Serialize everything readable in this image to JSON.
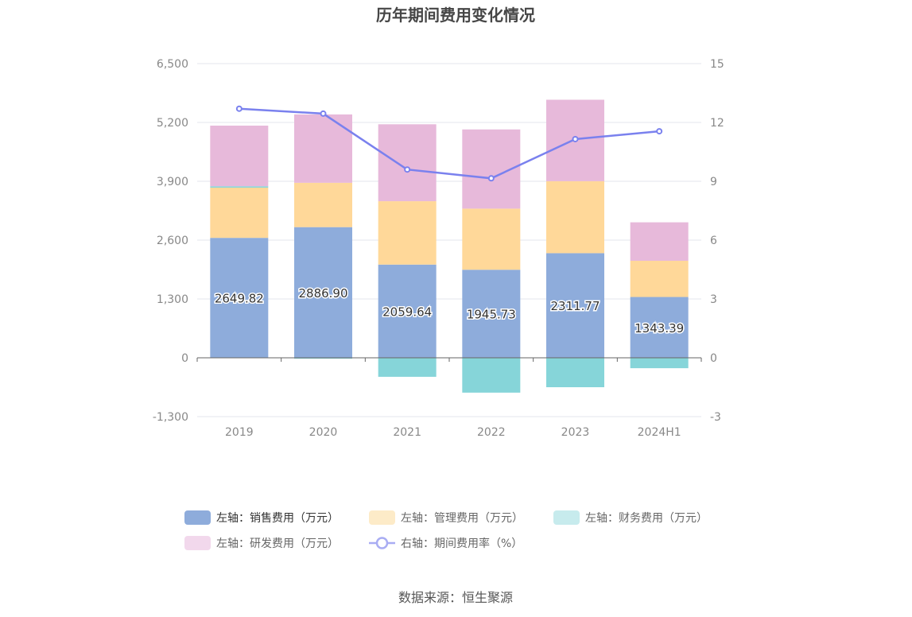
{
  "chart_data": {
    "type": "bar",
    "stacked": true,
    "title": "历年期间费用变化情况",
    "categories": [
      "2019",
      "2020",
      "2021",
      "2022",
      "2023",
      "2024H1"
    ],
    "left_axis": {
      "min": -1300,
      "max": 6500,
      "ticks": [
        "-1,300",
        "0",
        "1,300",
        "2,600",
        "3,900",
        "5,200",
        "6,500"
      ],
      "tick_values": [
        -1300,
        0,
        1300,
        2600,
        3900,
        5200,
        6500
      ]
    },
    "right_axis": {
      "min": -3,
      "max": 15,
      "ticks": [
        "-3",
        "0",
        "3",
        "6",
        "9",
        "12",
        "15"
      ],
      "tick_values": [
        -3,
        0,
        3,
        6,
        9,
        12,
        15
      ]
    },
    "series": [
      {
        "name": "左轴：销售费用（万元）",
        "axis": "left",
        "color": "#8eacdb",
        "values": [
          2649.82,
          2886.9,
          2059.64,
          1945.73,
          2311.77,
          1343.39
        ],
        "labels": [
          "2649.82",
          "2886.90",
          "2059.64",
          "1945.73",
          "2311.77",
          "1343.39"
        ]
      },
      {
        "name": "左轴：管理费用（万元）",
        "axis": "left",
        "color": "#ffd899",
        "values": [
          1110,
          980,
          1400,
          1350,
          1590,
          800
        ]
      },
      {
        "name": "左轴：财务费用（万元）",
        "axis": "left",
        "color": "#86d5d9",
        "values": [
          30,
          -20,
          -420,
          -770,
          -650,
          -230
        ]
      },
      {
        "name": "左轴：研发费用（万元）",
        "axis": "left",
        "color": "#e7b9da",
        "values": [
          1340,
          1510,
          1700,
          1750,
          1800,
          850
        ]
      },
      {
        "name": "右轴：期间费用率（%）",
        "axis": "right",
        "type": "line",
        "color": "#7a81ee",
        "values": [
          12.7,
          12.45,
          9.6,
          9.15,
          11.15,
          11.55
        ]
      }
    ],
    "legend_position": "bottom",
    "grid": true
  },
  "legend": {
    "items": [
      {
        "label": "左轴：销售费用（万元）",
        "color": "#8eacdb",
        "active": true
      },
      {
        "label": "左轴：管理费用（万元）",
        "color": "#fdebc8",
        "active": false
      },
      {
        "label": "左轴：财务费用（万元）",
        "color": "#c7ebed",
        "active": false
      },
      {
        "label": "左轴：研发费用（万元）",
        "color": "#f2d8ec",
        "active": false
      },
      {
        "label": "右轴：期间费用率（%）",
        "color": "#a9adf3",
        "active": false
      }
    ]
  },
  "source": "数据来源：恒生聚源"
}
